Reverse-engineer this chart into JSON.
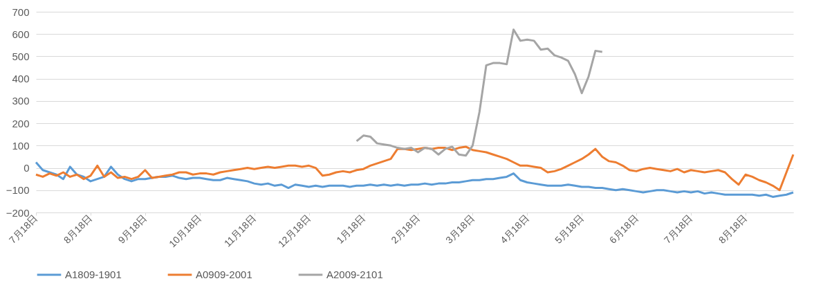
{
  "chart_data": {
    "type": "line",
    "categories": [
      "7月18日",
      null,
      null,
      null,
      null,
      null,
      null,
      null,
      "8月18日",
      null,
      null,
      null,
      null,
      null,
      null,
      null,
      "9月18日",
      null,
      null,
      null,
      null,
      null,
      null,
      null,
      "10月18日",
      null,
      null,
      null,
      null,
      null,
      null,
      null,
      "11月18日",
      null,
      null,
      null,
      null,
      null,
      null,
      null,
      "12月18日",
      null,
      null,
      null,
      null,
      null,
      null,
      null,
      "1月18日",
      null,
      null,
      null,
      null,
      null,
      null,
      null,
      "2月18日",
      null,
      null,
      null,
      null,
      null,
      null,
      null,
      "3月18日",
      null,
      null,
      null,
      null,
      null,
      null,
      null,
      "4月18日",
      null,
      null,
      null,
      null,
      null,
      null,
      null,
      "5月18日",
      null,
      null,
      null,
      null,
      null,
      null,
      null,
      "6月18日",
      null,
      null,
      null,
      null,
      null,
      null,
      null,
      "7月18日",
      null,
      null,
      null,
      null,
      null,
      null,
      null,
      "8月18日",
      null,
      null,
      null,
      null,
      null,
      null,
      null
    ],
    "series": [
      {
        "name": "A1809-1901",
        "color": "#5b9bd5",
        "values": [
          25,
          -10,
          -20,
          -30,
          -50,
          5,
          -30,
          -40,
          -60,
          -50,
          -40,
          5,
          -30,
          -50,
          -60,
          -50,
          -50,
          -45,
          -40,
          -40,
          -35,
          -45,
          -50,
          -45,
          -45,
          -50,
          -55,
          -55,
          -45,
          -50,
          -55,
          -60,
          -70,
          -75,
          -70,
          -80,
          -75,
          -90,
          -75,
          -80,
          -85,
          -80,
          -85,
          -80,
          -80,
          -80,
          -85,
          -80,
          -80,
          -75,
          -80,
          -75,
          -80,
          -75,
          -80,
          -75,
          -75,
          -70,
          -75,
          -70,
          -70,
          -65,
          -65,
          -60,
          -55,
          -55,
          -50,
          -50,
          -45,
          -40,
          -25,
          -55,
          -65,
          -70,
          -75,
          -80,
          -80,
          -80,
          -75,
          -80,
          -85,
          -85,
          -90,
          -90,
          -95,
          -100,
          -95,
          -100,
          -105,
          -110,
          -105,
          -100,
          -100,
          -105,
          -110,
          -105,
          -110,
          -105,
          -115,
          -110,
          -115,
          -120,
          -120,
          -120,
          -120,
          -120,
          -125,
          -120,
          -130,
          -125,
          -120,
          -110
        ]
      },
      {
        "name": "A0909-2001",
        "color": "#ed7d31",
        "values": [
          -30,
          -40,
          -25,
          -35,
          -20,
          -40,
          -30,
          -50,
          -35,
          10,
          -40,
          -20,
          -45,
          -40,
          -50,
          -40,
          -10,
          -45,
          -40,
          -35,
          -30,
          -20,
          -20,
          -30,
          -25,
          -25,
          -30,
          -20,
          -15,
          -10,
          -5,
          0,
          -5,
          0,
          5,
          0,
          5,
          10,
          10,
          5,
          10,
          0,
          -35,
          -30,
          -20,
          -15,
          -20,
          -10,
          -5,
          10,
          20,
          30,
          40,
          85,
          85,
          80,
          85,
          90,
          85,
          90,
          90,
          80,
          90,
          95,
          80,
          75,
          70,
          60,
          50,
          40,
          25,
          10,
          10,
          5,
          0,
          -20,
          -15,
          -5,
          10,
          25,
          40,
          60,
          85,
          50,
          30,
          25,
          10,
          -10,
          -15,
          -5,
          0,
          -5,
          -10,
          -15,
          -5,
          -20,
          -10,
          -15,
          -20,
          -15,
          -10,
          -20,
          -50,
          -75,
          -30,
          -40,
          -55,
          -65,
          -80,
          -100,
          -20,
          60
        ]
      },
      {
        "name": "A2009-2101",
        "color": "#a5a5a5",
        "values": [
          null,
          null,
          null,
          null,
          null,
          null,
          null,
          null,
          null,
          null,
          null,
          null,
          null,
          null,
          null,
          null,
          null,
          null,
          null,
          null,
          null,
          null,
          null,
          null,
          null,
          null,
          null,
          null,
          null,
          null,
          null,
          null,
          null,
          null,
          null,
          null,
          null,
          null,
          null,
          null,
          null,
          null,
          null,
          null,
          null,
          null,
          null,
          120,
          145,
          140,
          110,
          105,
          100,
          90,
          85,
          90,
          70,
          90,
          85,
          60,
          85,
          95,
          60,
          55,
          100,
          250,
          460,
          470,
          470,
          465,
          620,
          570,
          575,
          570,
          530,
          535,
          505,
          495,
          480,
          420,
          335,
          410,
          525,
          520,
          null,
          null,
          null,
          null,
          null,
          null,
          null,
          null,
          null,
          null,
          null,
          null,
          null,
          null,
          null,
          null,
          null,
          null,
          null,
          null,
          null,
          null,
          null,
          null,
          null,
          null,
          null,
          null
        ]
      }
    ],
    "ylim": [
      -200,
      700
    ],
    "yticks": [
      -200,
      -100,
      0,
      100,
      200,
      300,
      400,
      500,
      600,
      700
    ],
    "grid": "y",
    "legend": "bottom"
  }
}
